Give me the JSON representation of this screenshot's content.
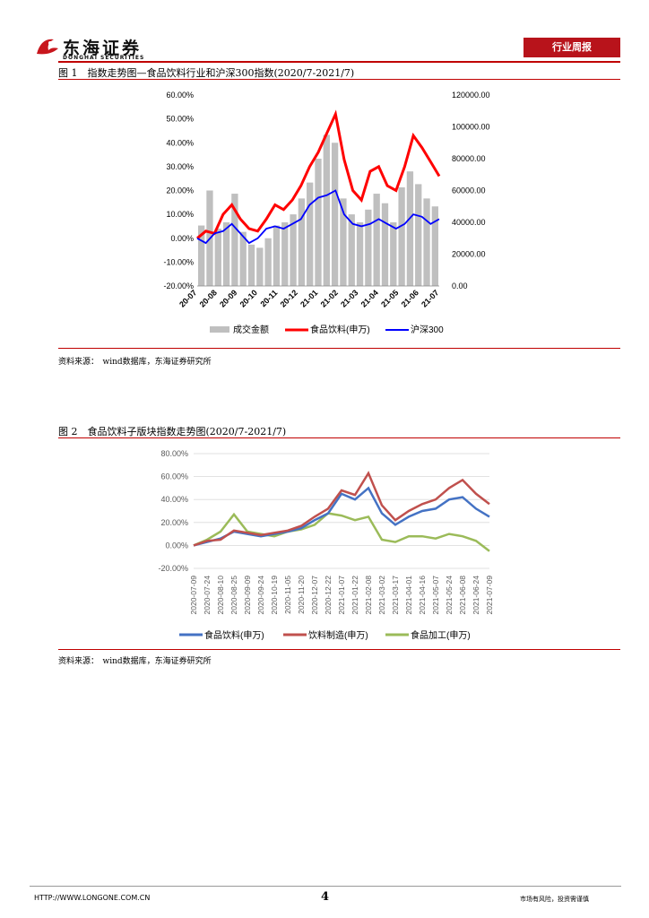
{
  "header": {
    "logo_cn": "东海证券",
    "logo_en": "DONGHAI SECURITIES",
    "section_tag": "行业周报"
  },
  "figure1": {
    "title": "图 1　指数走势图—食品饮料行业和沪深300指数(2020/7-2021/7)",
    "source": "资料来源：　wind数据库，东海证券研究所",
    "chart_data": {
      "type": "bar+line",
      "x_ticks": [
        "20-07",
        "20-08",
        "20-09",
        "20-10",
        "20-11",
        "20-12",
        "21-01",
        "21-02",
        "21-03",
        "21-04",
        "21-05",
        "21-06",
        "21-07"
      ],
      "left_axis": {
        "ticks": [
          "60.00%",
          "50.00%",
          "40.00%",
          "30.00%",
          "20.00%",
          "10.00%",
          "0.00%",
          "-10.00%",
          "-20.00%"
        ],
        "ylim": [
          -20,
          60
        ]
      },
      "right_axis": {
        "ticks": [
          "120000.00",
          "100000.00",
          "80000.00",
          "60000.00",
          "40000.00",
          "20000.00",
          "0.00"
        ],
        "ylim": [
          0,
          120000
        ]
      },
      "legend": [
        "成交金额",
        "食品饮料(申万)",
        "沪深300"
      ],
      "colors": {
        "volume": "#bfbfbf",
        "food": "#ff0000",
        "hs300": "#0000ff"
      },
      "series": [
        {
          "name": "食品饮料(申万)",
          "values": [
            0,
            3,
            2,
            10,
            14,
            8,
            4,
            3,
            8,
            14,
            12,
            16,
            22,
            30,
            36,
            44,
            52,
            33,
            20,
            16,
            28,
            30,
            22,
            20,
            30,
            43,
            38,
            32,
            26
          ]
        },
        {
          "name": "沪深300",
          "values": [
            0,
            -2,
            2,
            3,
            6,
            2,
            -2,
            0,
            4,
            5,
            4,
            6,
            8,
            14,
            17,
            18,
            20,
            10,
            6,
            5,
            6,
            8,
            6,
            4,
            6,
            10,
            9,
            6,
            8
          ]
        },
        {
          "name": "成交金额",
          "values": [
            38000,
            60000,
            36000,
            40000,
            58000,
            34000,
            26000,
            24000,
            30000,
            38000,
            40000,
            45000,
            55000,
            65000,
            80000,
            95000,
            90000,
            55000,
            45000,
            40000,
            48000,
            58000,
            52000,
            40000,
            62000,
            72000,
            64000,
            55000,
            50000
          ]
        }
      ]
    }
  },
  "figure2": {
    "title": "图 2　食品饮料子版块指数走势图(2020/7-2021/7)",
    "source": "资料来源：　wind数据库，东海证券研究所",
    "chart_data": {
      "type": "line",
      "x_ticks": [
        "2020-07-09",
        "2020-07-24",
        "2020-08-10",
        "2020-08-25",
        "2020-09-09",
        "2020-09-24",
        "2020-10-19",
        "2020-11-05",
        "2020-11-20",
        "2020-12-07",
        "2020-12-22",
        "2021-01-07",
        "2021-01-22",
        "2021-02-08",
        "2021-03-02",
        "2021-03-17",
        "2021-04-01",
        "2021-04-16",
        "2021-05-07",
        "2021-05-24",
        "2021-06-08",
        "2021-06-24",
        "2021-07-09"
      ],
      "ylim": [
        -20,
        80
      ],
      "y_ticks": [
        "80.00%",
        "60.00%",
        "40.00%",
        "20.00%",
        "0.00%",
        "-20.00%"
      ],
      "legend": [
        "食品饮料(申万)",
        "饮料制造(申万)",
        "食品加工(申万)"
      ],
      "colors": {
        "food": "#4472c4",
        "beverage": "#c0504d",
        "processing": "#9bbb59"
      },
      "series": [
        {
          "name": "食品饮料(申万)",
          "values": [
            0,
            3,
            6,
            12,
            10,
            8,
            10,
            12,
            15,
            22,
            28,
            45,
            40,
            50,
            28,
            18,
            25,
            30,
            32,
            40,
            42,
            32,
            25
          ]
        },
        {
          "name": "饮料制造(申万)",
          "values": [
            0,
            4,
            5,
            13,
            11,
            9,
            11,
            13,
            17,
            25,
            32,
            48,
            44,
            63,
            35,
            22,
            30,
            36,
            40,
            50,
            57,
            45,
            36
          ]
        },
        {
          "name": "食品加工(申万)",
          "values": [
            0,
            5,
            12,
            27,
            12,
            10,
            8,
            12,
            14,
            18,
            28,
            26,
            22,
            25,
            5,
            3,
            8,
            8,
            6,
            10,
            8,
            4,
            -5
          ]
        }
      ]
    }
  },
  "footer": {
    "url": "HTTP://WWW.LONGONE.COM.CN",
    "page": "4",
    "note": "市场有风险，投资需谨慎"
  }
}
